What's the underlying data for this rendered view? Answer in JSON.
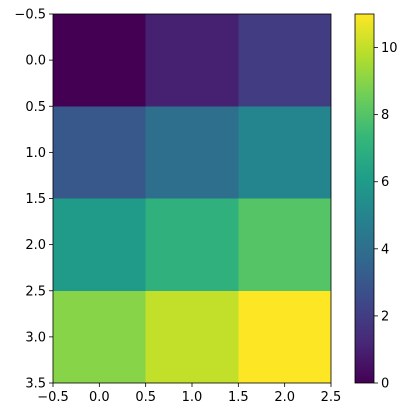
{
  "chart_data": {
    "type": "heatmap",
    "title": "",
    "xlabel": "",
    "ylabel": "",
    "x_centers": [
      0,
      1,
      2
    ],
    "y_centers": [
      0,
      1,
      2,
      3
    ],
    "xlim": [
      -0.5,
      2.5
    ],
    "ylim": [
      3.5,
      -0.5
    ],
    "y_axis_inverted": true,
    "xticks": [
      -0.5,
      0.0,
      0.5,
      1.0,
      1.5,
      2.0,
      2.5
    ],
    "xtick_labels": [
      "−0.5",
      "0.0",
      "0.5",
      "1.0",
      "1.5",
      "2.0",
      "2.5"
    ],
    "yticks": [
      -0.5,
      0.0,
      0.5,
      1.0,
      1.5,
      2.0,
      2.5,
      3.0,
      3.5
    ],
    "ytick_labels": [
      "−0.5",
      "0.0",
      "0.5",
      "1.0",
      "1.5",
      "2.0",
      "2.5",
      "3.0",
      "3.5"
    ],
    "values": [
      [
        0,
        1,
        2
      ],
      [
        3,
        4,
        5
      ],
      [
        6,
        7,
        8
      ],
      [
        9,
        10,
        11
      ]
    ],
    "grid": false,
    "colormap": "viridis",
    "colorbar": {
      "min": 0,
      "max": 11,
      "ticks": [
        0,
        2,
        4,
        6,
        8,
        10
      ],
      "tick_labels": [
        "0",
        "2",
        "4",
        "6",
        "8",
        "10"
      ]
    }
  },
  "colors": {
    "axis": "#000000",
    "background": "#ffffff",
    "viridis_stops": [
      "#440154",
      "#482878",
      "#3e4989",
      "#31688e",
      "#26828e",
      "#1f9e89",
      "#35b779",
      "#6ece58",
      "#b5de2b",
      "#fde725"
    ]
  }
}
